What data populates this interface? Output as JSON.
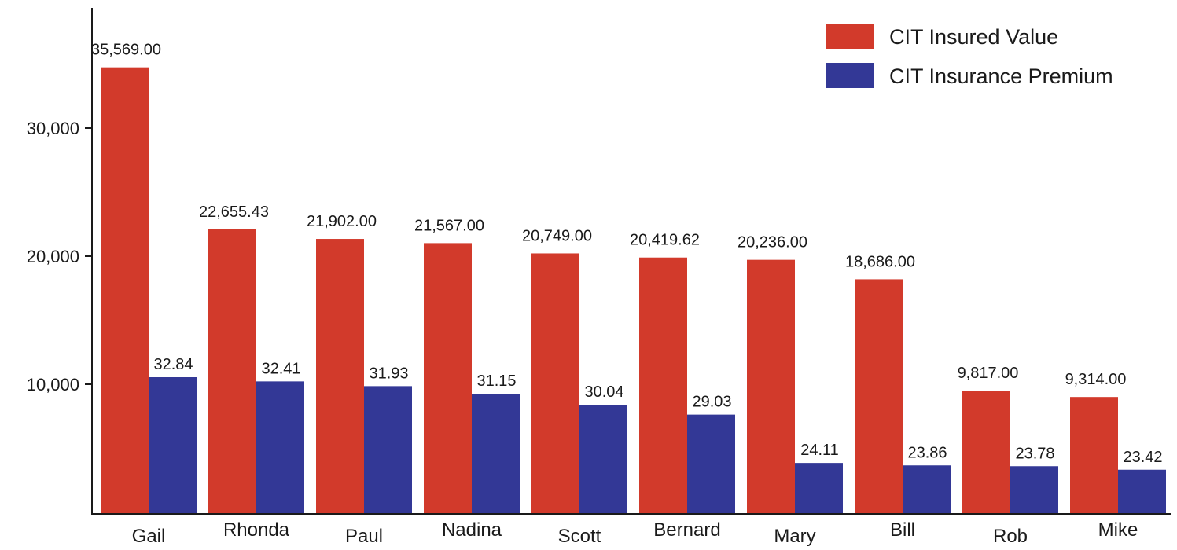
{
  "chart_data": {
    "type": "bar",
    "categories": [
      "Gail",
      "Rhonda",
      "Paul",
      "Nadina",
      "Scott",
      "Bernard",
      "Mary",
      "Bill",
      "Rob",
      "Mike"
    ],
    "series": [
      {
        "name": "CIT Insured Value",
        "color": "#d23a2b",
        "values": [
          35569.0,
          22655.43,
          21902.0,
          21567.0,
          20749.0,
          20419.62,
          20236.0,
          18686.0,
          9817.0,
          9314.0
        ],
        "labels": [
          "35,569.00",
          "22,655.43",
          "21,902.00",
          "21,567.00",
          "20,749.00",
          "20,419.62",
          "20,236.00",
          "18,686.00",
          "9,817.00",
          "9,314.00"
        ]
      },
      {
        "name": "CIT Insurance Premium",
        "color": "#333896",
        "values": [
          32.84,
          32.41,
          31.93,
          31.15,
          30.04,
          29.03,
          24.11,
          23.86,
          23.78,
          23.42
        ],
        "labels": [
          "32.84",
          "32.41",
          "31.93",
          "31.15",
          "30.04",
          "29.03",
          "24.11",
          "23.86",
          "23.78",
          "23.42"
        ]
      }
    ],
    "y_ticks": [
      {
        "value": 10000,
        "label": "10,000"
      },
      {
        "value": 20000,
        "label": "20,000"
      },
      {
        "value": 30000,
        "label": "30,000"
      }
    ],
    "ylim": [
      0,
      39700
    ],
    "legend_position": "top-right",
    "grid": false
  }
}
